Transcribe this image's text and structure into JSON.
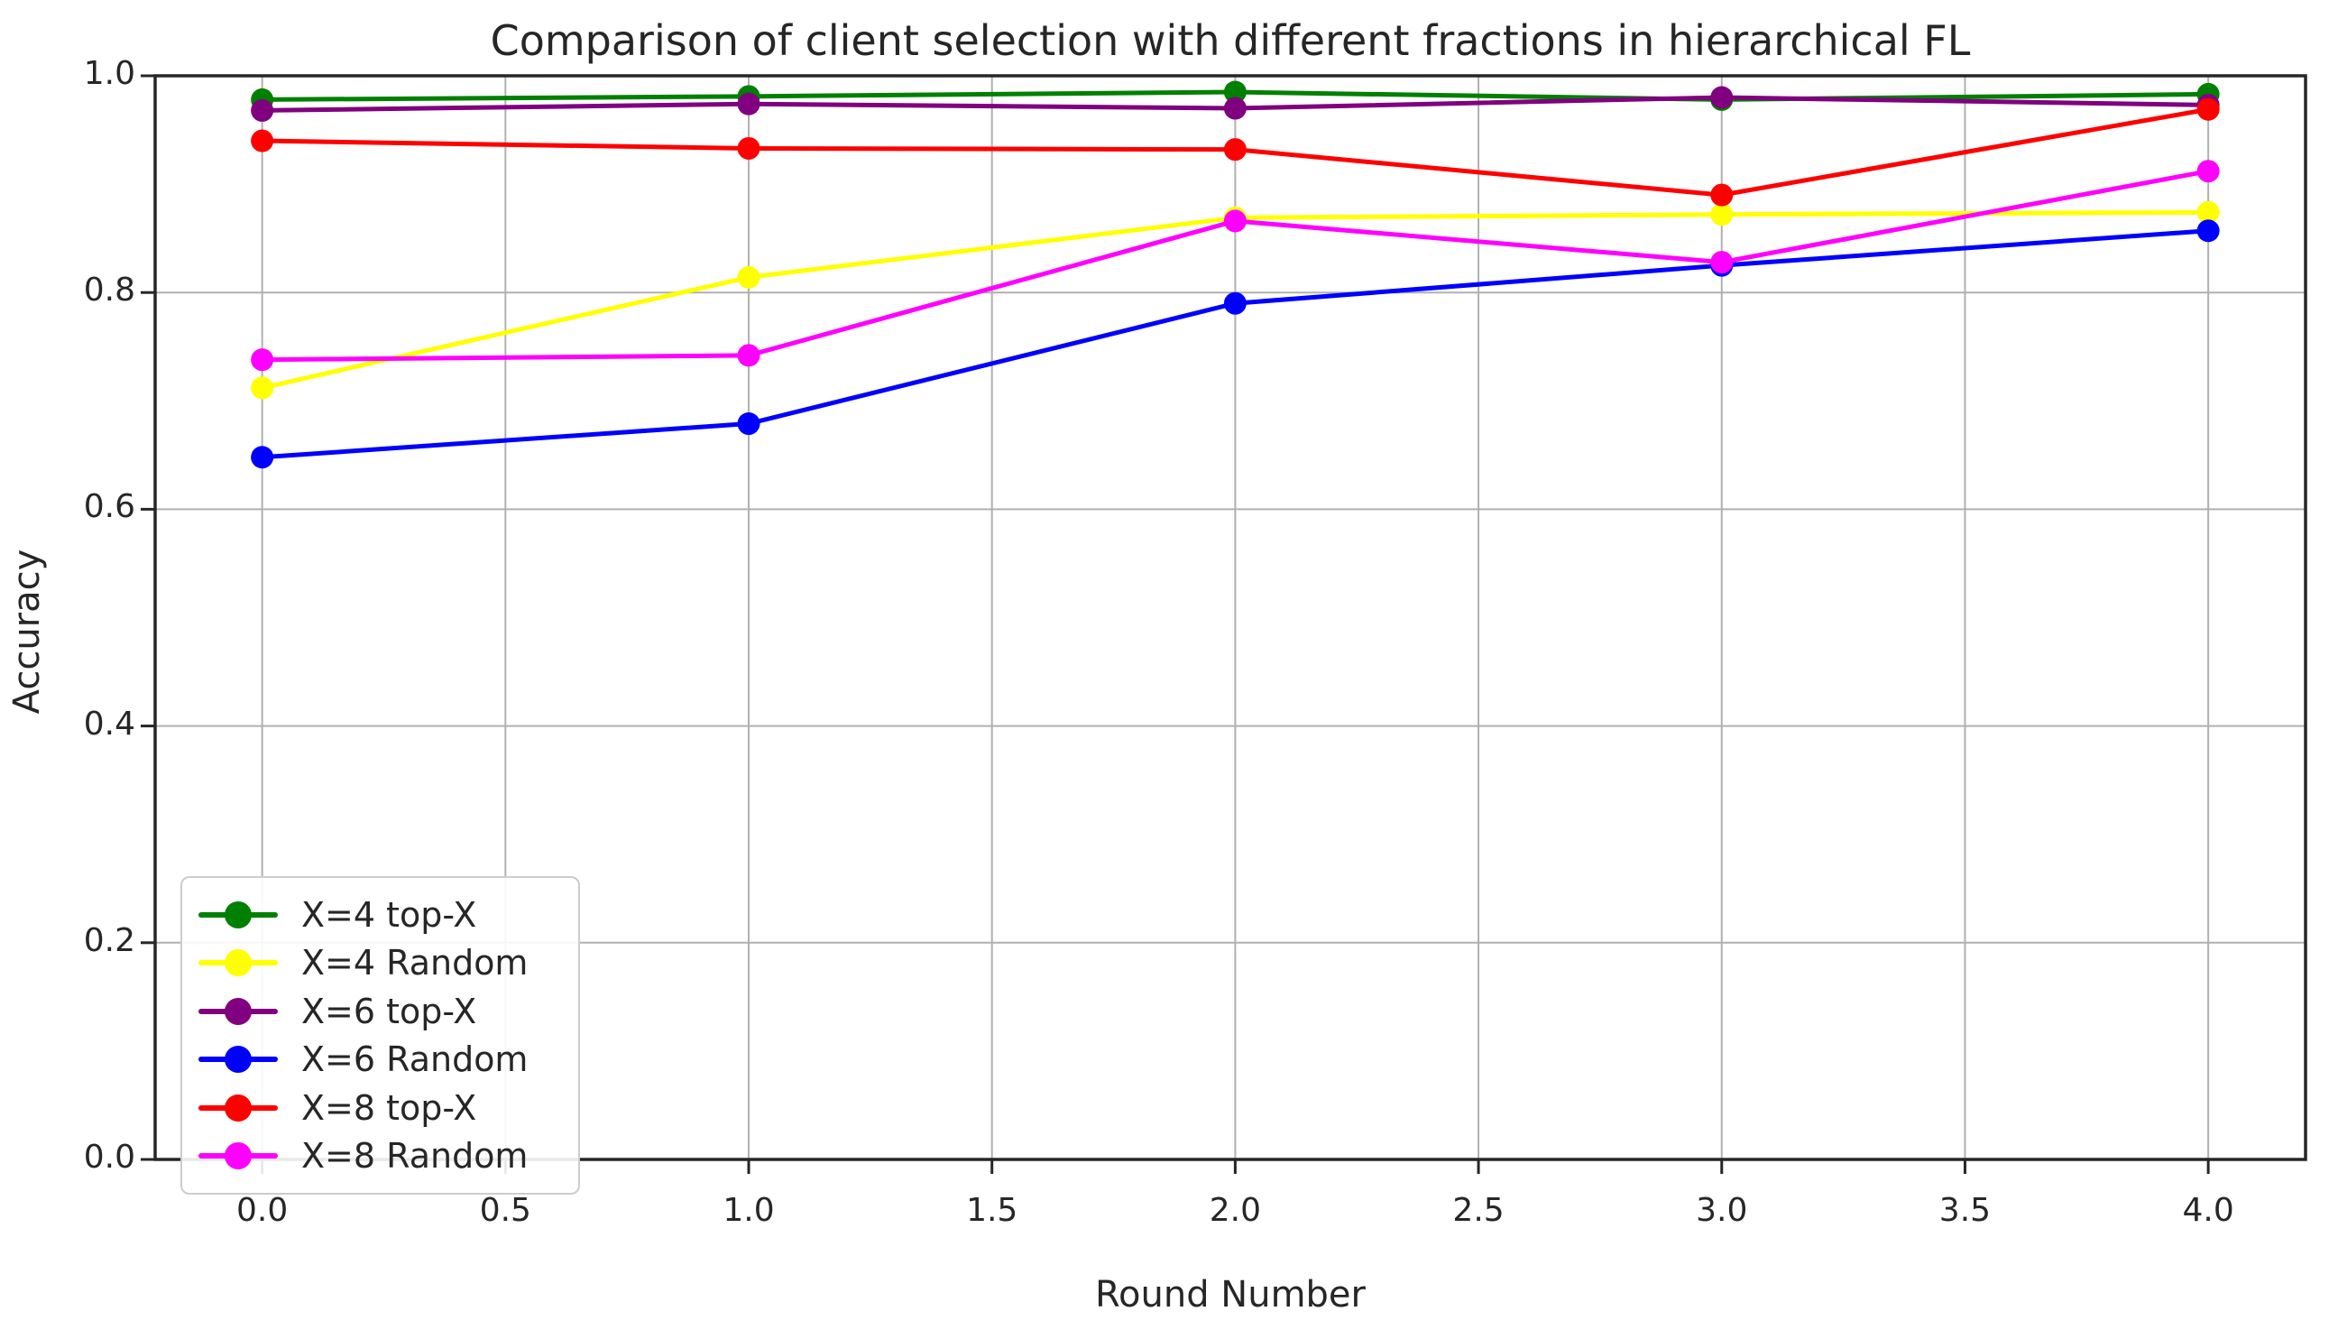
{
  "chart_data": {
    "type": "line",
    "title": "Comparison of client selection with different fractions in hierarchical FL",
    "xlabel": "Round Number",
    "ylabel": "Accuracy",
    "x": [
      0,
      1,
      2,
      3,
      4
    ],
    "xlim": [
      -0.22,
      4.2
    ],
    "ylim": [
      0.0,
      1.0
    ],
    "xticks": [
      {
        "value": 0.0,
        "label": "0.0"
      },
      {
        "value": 0.5,
        "label": "0.5"
      },
      {
        "value": 1.0,
        "label": "1.0"
      },
      {
        "value": 1.5,
        "label": "1.5"
      },
      {
        "value": 2.0,
        "label": "2.0"
      },
      {
        "value": 2.5,
        "label": "2.5"
      },
      {
        "value": 3.0,
        "label": "3.0"
      },
      {
        "value": 3.5,
        "label": "3.5"
      },
      {
        "value": 4.0,
        "label": "4.0"
      }
    ],
    "yticks": [
      {
        "value": 0.0,
        "label": "0.0"
      },
      {
        "value": 0.2,
        "label": "0.2"
      },
      {
        "value": 0.4,
        "label": "0.4"
      },
      {
        "value": 0.6,
        "label": "0.6"
      },
      {
        "value": 0.8,
        "label": "0.8"
      },
      {
        "value": 1.0,
        "label": "1.0"
      }
    ],
    "grid": true,
    "legend_position": "lower left",
    "series": [
      {
        "name": "X=4 top-X",
        "color": "#008000",
        "values": [
          0.978,
          0.981,
          0.985,
          0.978,
          0.983
        ]
      },
      {
        "name": "X=4 Random",
        "color": "#ffff00",
        "values": [
          0.712,
          0.814,
          0.869,
          0.872,
          0.874
        ]
      },
      {
        "name": "X=6 top-X",
        "color": "#800080",
        "values": [
          0.968,
          0.974,
          0.97,
          0.98,
          0.973
        ]
      },
      {
        "name": "X=6 Random",
        "color": "#0000ff",
        "values": [
          0.648,
          0.679,
          0.79,
          0.825,
          0.857
        ]
      },
      {
        "name": "X=8 top-X",
        "color": "#ff0000",
        "values": [
          0.94,
          0.933,
          0.932,
          0.89,
          0.969
        ]
      },
      {
        "name": "X=8 Random",
        "color": "#ff00ff",
        "values": [
          0.738,
          0.742,
          0.866,
          0.828,
          0.912
        ]
      }
    ],
    "colors": {
      "background": "#ffffff",
      "spine": "#262626",
      "grid": "#b0b0b0",
      "text": "#262626",
      "legend_border": "#cccccc"
    }
  }
}
